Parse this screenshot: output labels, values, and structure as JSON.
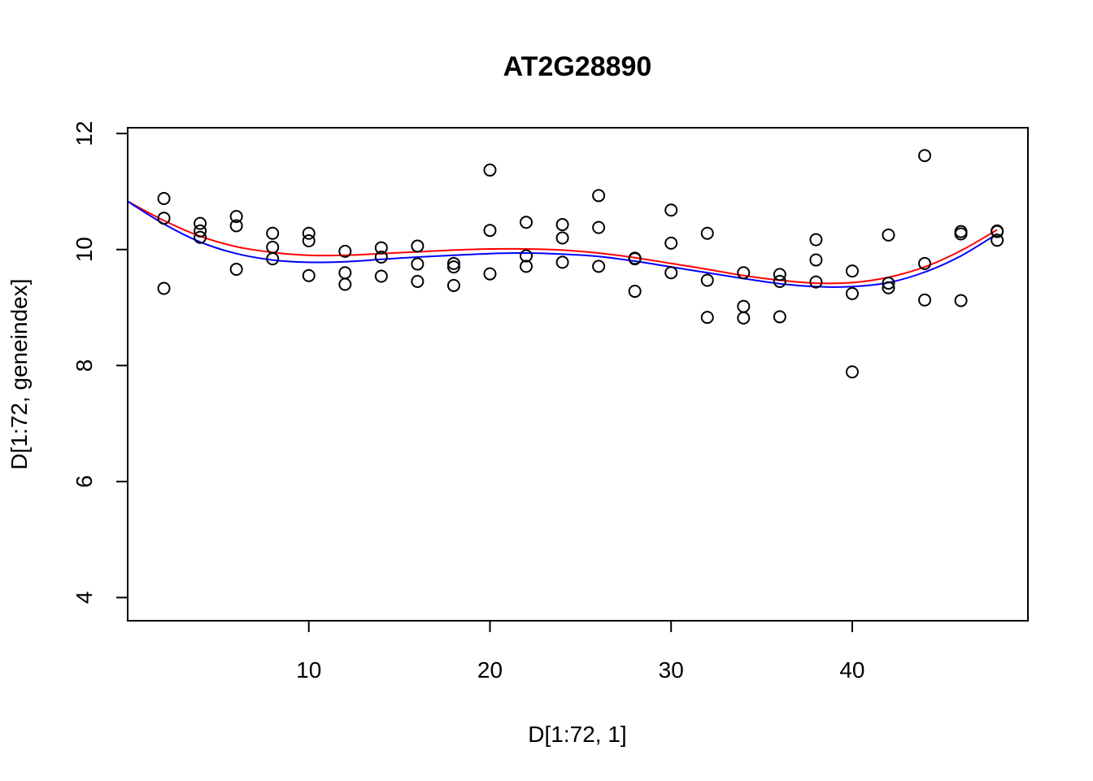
{
  "chart_data": {
    "type": "scatter",
    "title": "AT2G28890",
    "xlabel": "D[1:72, 1]",
    "ylabel": "D[1:72, geneindex]",
    "xlim": [
      0,
      49.7
    ],
    "ylim": [
      3.6,
      12.1
    ],
    "xticks": [
      10,
      20,
      30,
      40
    ],
    "yticks": [
      4,
      6,
      8,
      10,
      12
    ],
    "grid": false,
    "legend": "none",
    "points": [
      [
        2,
        10.88
      ],
      [
        2,
        10.54
      ],
      [
        2,
        9.33
      ],
      [
        4,
        10.45
      ],
      [
        4,
        10.32
      ],
      [
        4,
        10.21
      ],
      [
        6,
        10.57
      ],
      [
        6,
        10.41
      ],
      [
        6,
        9.66
      ],
      [
        8,
        10.28
      ],
      [
        8,
        10.04
      ],
      [
        8,
        9.84
      ],
      [
        10,
        10.28
      ],
      [
        10,
        10.15
      ],
      [
        10,
        9.55
      ],
      [
        12,
        9.97
      ],
      [
        12,
        9.6
      ],
      [
        12,
        9.4
      ],
      [
        14,
        10.03
      ],
      [
        14,
        9.87
      ],
      [
        14,
        9.54
      ],
      [
        16,
        10.06
      ],
      [
        16,
        9.75
      ],
      [
        16,
        9.45
      ],
      [
        18,
        9.76
      ],
      [
        18,
        9.7
      ],
      [
        18,
        9.38
      ],
      [
        20,
        11.37
      ],
      [
        20,
        10.33
      ],
      [
        20,
        9.58
      ],
      [
        22,
        10.47
      ],
      [
        22,
        9.89
      ],
      [
        22,
        9.71
      ],
      [
        24,
        10.43
      ],
      [
        24,
        10.2
      ],
      [
        24,
        9.78
      ],
      [
        26,
        10.93
      ],
      [
        26,
        10.38
      ],
      [
        26,
        9.71
      ],
      [
        28,
        9.85
      ],
      [
        28,
        9.84
      ],
      [
        28,
        9.28
      ],
      [
        30,
        10.68
      ],
      [
        30,
        10.11
      ],
      [
        30,
        9.6
      ],
      [
        32,
        10.28
      ],
      [
        32,
        9.47
      ],
      [
        32,
        8.83
      ],
      [
        34,
        9.6
      ],
      [
        34,
        9.02
      ],
      [
        34,
        8.82
      ],
      [
        36,
        9.57
      ],
      [
        36,
        9.45
      ],
      [
        36,
        8.84
      ],
      [
        38,
        10.17
      ],
      [
        38,
        9.82
      ],
      [
        38,
        9.44
      ],
      [
        40,
        9.63
      ],
      [
        40,
        9.24
      ],
      [
        40,
        7.89
      ],
      [
        42,
        10.25
      ],
      [
        42,
        9.42
      ],
      [
        42,
        9.34
      ],
      [
        44,
        11.62
      ],
      [
        44,
        9.76
      ],
      [
        44,
        9.13
      ],
      [
        46,
        10.31
      ],
      [
        46,
        10.27
      ],
      [
        46,
        9.12
      ],
      [
        48,
        10.32
      ],
      [
        48,
        10.31
      ],
      [
        48,
        10.16
      ]
    ],
    "series": [
      {
        "color": "#ff0000",
        "x": [
          0,
          2,
          4,
          6,
          8,
          10,
          12,
          14,
          16,
          18,
          20,
          22,
          24,
          26,
          28,
          30,
          32,
          34,
          36,
          38,
          40,
          42,
          44,
          46,
          48
        ],
        "y": [
          10.83,
          10.5,
          10.23,
          10.05,
          9.95,
          9.9,
          9.9,
          9.93,
          9.96,
          9.99,
          10.01,
          10.01,
          9.99,
          9.94,
          9.86,
          9.76,
          9.66,
          9.55,
          9.47,
          9.42,
          9.43,
          9.52,
          9.7,
          9.98,
          10.34
        ]
      },
      {
        "color": "#0000ff",
        "x": [
          0,
          2,
          4,
          6,
          8,
          10,
          12,
          14,
          16,
          18,
          20,
          22,
          24,
          26,
          28,
          30,
          32,
          34,
          36,
          38,
          40,
          42,
          44,
          46,
          48
        ],
        "y": [
          10.83,
          10.44,
          10.13,
          9.93,
          9.82,
          9.78,
          9.79,
          9.83,
          9.87,
          9.9,
          9.93,
          9.94,
          9.92,
          9.88,
          9.8,
          9.7,
          9.6,
          9.5,
          9.41,
          9.36,
          9.36,
          9.43,
          9.61,
          9.89,
          10.27
        ]
      }
    ]
  }
}
